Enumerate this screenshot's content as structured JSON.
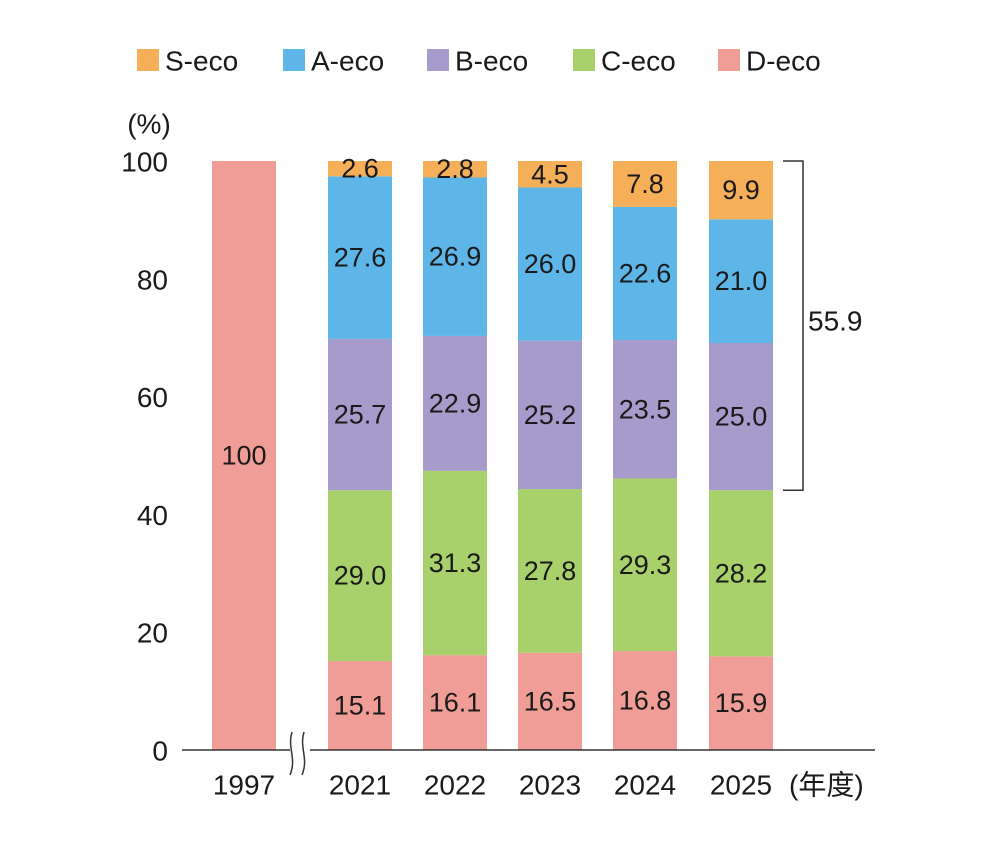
{
  "chart_data": {
    "type": "bar",
    "stacked": true,
    "y_unit_label": "(%)",
    "x_unit_label": "(年度)",
    "ylim": [
      0,
      100
    ],
    "yticks": [
      0,
      20,
      40,
      60,
      80,
      100
    ],
    "grid": false,
    "legend_position": "top",
    "axis_break_between": [
      "1997",
      "2021"
    ],
    "categories": [
      "1997",
      "2021",
      "2022",
      "2023",
      "2024",
      "2025"
    ],
    "series": [
      {
        "name": "D-eco",
        "color": "#F19D97",
        "values": [
          100,
          15.1,
          16.1,
          16.5,
          16.8,
          15.9
        ],
        "labels": [
          "100",
          "15.1",
          "16.1",
          "16.5",
          "16.8",
          "15.9"
        ]
      },
      {
        "name": "C-eco",
        "color": "#A9D16B",
        "values": [
          0,
          29.0,
          31.3,
          27.8,
          29.3,
          28.2
        ],
        "labels": [
          "",
          "29.0",
          "31.3",
          "27.8",
          "29.3",
          "28.2"
        ]
      },
      {
        "name": "B-eco",
        "color": "#A69BCB",
        "values": [
          0,
          25.7,
          22.9,
          25.2,
          23.5,
          25.0
        ],
        "labels": [
          "",
          "25.7",
          "22.9",
          "25.2",
          "23.5",
          "25.0"
        ]
      },
      {
        "name": "A-eco",
        "color": "#5EB5E8",
        "values": [
          0,
          27.6,
          26.9,
          26.0,
          22.6,
          21.0
        ],
        "labels": [
          "",
          "27.6",
          "26.9",
          "26.0",
          "22.6",
          "21.0"
        ]
      },
      {
        "name": "S-eco",
        "color": "#F5AF58",
        "values": [
          0,
          2.6,
          2.8,
          4.5,
          7.8,
          9.9
        ],
        "labels": [
          "",
          "2.6",
          "2.8",
          "4.5",
          "7.8",
          "9.9"
        ]
      }
    ],
    "legend_order": [
      "S-eco",
      "A-eco",
      "B-eco",
      "C-eco",
      "D-eco"
    ],
    "annotations": [
      {
        "type": "bracket",
        "category": "2025",
        "from": 44.1,
        "to": 100,
        "label": "55.9"
      }
    ]
  }
}
